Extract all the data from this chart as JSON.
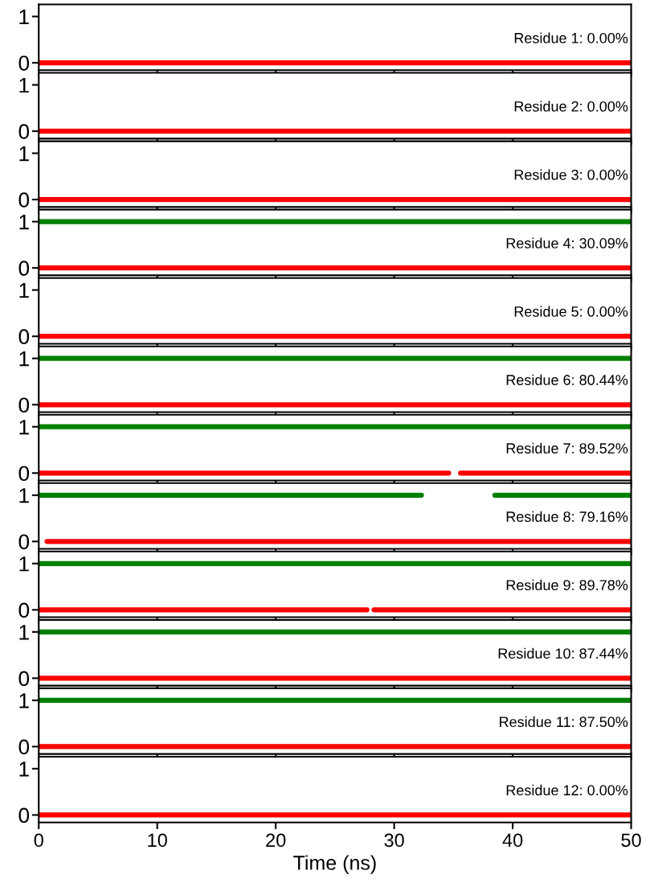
{
  "chart_data": [
    {
      "type": "line",
      "annotations": [
        "Residue 1: 0.00%"
      ],
      "xlim": [
        0,
        50
      ],
      "xticks": [
        0,
        10,
        20,
        30,
        40,
        50
      ],
      "ylim": [
        -0.16,
        1.26
      ],
      "yticks": [
        0,
        1
      ],
      "tick_labels": "y",
      "marker": "none",
      "line_style": "solid",
      "grid": false,
      "legend": false,
      "series": [
        {
          "color": "#ff0000",
          "x": [
            0,
            50
          ],
          "values": [
            0,
            0
          ]
        }
      ]
    },
    {
      "type": "line",
      "annotations": [
        "Residue 2: 0.00%"
      ],
      "xlim": [
        0,
        50
      ],
      "xticks": [
        0,
        10,
        20,
        30,
        40,
        50
      ],
      "ylim": [
        -0.16,
        1.26
      ],
      "yticks": [
        0,
        1
      ],
      "tick_labels": "y",
      "marker": "none",
      "line_style": "solid",
      "grid": false,
      "legend": false,
      "series": [
        {
          "color": "#ff0000",
          "x": [
            0,
            50
          ],
          "values": [
            0,
            0
          ]
        }
      ]
    },
    {
      "type": "line",
      "annotations": [
        "Residue 3: 0.00%"
      ],
      "xlim": [
        0,
        50
      ],
      "xticks": [
        0,
        10,
        20,
        30,
        40,
        50
      ],
      "ylim": [
        -0.16,
        1.26
      ],
      "yticks": [
        0,
        1
      ],
      "tick_labels": "y",
      "marker": "none",
      "line_style": "solid",
      "grid": false,
      "legend": false,
      "series": [
        {
          "color": "#ff0000",
          "x": [
            0,
            50
          ],
          "values": [
            0,
            0
          ]
        }
      ]
    },
    {
      "type": "line",
      "annotations": [
        "Residue 4: 30.09%"
      ],
      "xlim": [
        0,
        50
      ],
      "xticks": [
        0,
        10,
        20,
        30,
        40,
        50
      ],
      "ylim": [
        -0.16,
        1.26
      ],
      "yticks": [
        0,
        1
      ],
      "tick_labels": "y",
      "marker": "none",
      "line_style": "solid",
      "grid": false,
      "legend": false,
      "series": [
        {
          "color": "#008000",
          "x": [
            0,
            50
          ],
          "values": [
            1,
            1
          ]
        },
        {
          "color": "#ff0000",
          "x": [
            0,
            50
          ],
          "values": [
            0,
            0
          ]
        }
      ]
    },
    {
      "type": "line",
      "annotations": [
        "Residue 5: 0.00%"
      ],
      "xlim": [
        0,
        50
      ],
      "xticks": [
        0,
        10,
        20,
        30,
        40,
        50
      ],
      "ylim": [
        -0.16,
        1.26
      ],
      "yticks": [
        0,
        1
      ],
      "tick_labels": "y",
      "marker": "none",
      "line_style": "solid",
      "grid": false,
      "legend": false,
      "series": [
        {
          "color": "#ff0000",
          "x": [
            0,
            50
          ],
          "values": [
            0,
            0
          ]
        }
      ]
    },
    {
      "type": "line",
      "annotations": [
        "Residue 6: 80.44%"
      ],
      "xlim": [
        0,
        50
      ],
      "xticks": [
        0,
        10,
        20,
        30,
        40,
        50
      ],
      "ylim": [
        -0.16,
        1.26
      ],
      "yticks": [
        0,
        1
      ],
      "tick_labels": "y",
      "marker": "none",
      "line_style": "solid",
      "grid": false,
      "legend": false,
      "series": [
        {
          "color": "#008000",
          "x": [
            0,
            50
          ],
          "values": [
            1,
            1
          ]
        },
        {
          "color": "#ff0000",
          "x": [
            0,
            50
          ],
          "values": [
            0,
            0
          ]
        }
      ]
    },
    {
      "type": "line",
      "annotations": [
        "Residue 7: 89.52%"
      ],
      "xlim": [
        0,
        50
      ],
      "xticks": [
        0,
        10,
        20,
        30,
        40,
        50
      ],
      "ylim": [
        -0.16,
        1.26
      ],
      "yticks": [
        0,
        1
      ],
      "tick_labels": "y",
      "marker": "none",
      "line_style": "solid",
      "grid": false,
      "legend": false,
      "series": [
        {
          "color": "#008000",
          "x": [
            0,
            50
          ],
          "values": [
            1,
            1
          ]
        },
        {
          "color": "#ff0000",
          "x": [
            0,
            34.6,
            35.1,
            35.6,
            50
          ],
          "values": [
            0,
            0,
            null,
            0,
            0
          ]
        }
      ]
    },
    {
      "type": "line",
      "annotations": [
        "Residue 8: 79.16%"
      ],
      "xlim": [
        0,
        50
      ],
      "xticks": [
        0,
        10,
        20,
        30,
        40,
        50
      ],
      "ylim": [
        -0.16,
        1.26
      ],
      "yticks": [
        0,
        1
      ],
      "tick_labels": "y",
      "marker": "none",
      "line_style": "solid",
      "grid": false,
      "legend": false,
      "series": [
        {
          "color": "#008000",
          "x": [
            0,
            32.3,
            35.4,
            38.5,
            50
          ],
          "values": [
            1,
            1,
            null,
            1,
            1
          ]
        },
        {
          "color": "#ff0000",
          "x": [
            0.7,
            50
          ],
          "values": [
            0,
            0
          ]
        }
      ]
    },
    {
      "type": "line",
      "annotations": [
        "Residue 9: 89.78%"
      ],
      "xlim": [
        0,
        50
      ],
      "xticks": [
        0,
        10,
        20,
        30,
        40,
        50
      ],
      "ylim": [
        -0.16,
        1.26
      ],
      "yticks": [
        0,
        1
      ],
      "tick_labels": "y",
      "marker": "none",
      "line_style": "solid",
      "grid": false,
      "legend": false,
      "series": [
        {
          "color": "#008000",
          "x": [
            0,
            50
          ],
          "values": [
            1,
            1
          ]
        },
        {
          "color": "#ff0000",
          "x": [
            0,
            27.7,
            28.0,
            28.3,
            50
          ],
          "values": [
            0,
            0,
            null,
            0,
            0
          ]
        }
      ]
    },
    {
      "type": "line",
      "annotations": [
        "Residue 10: 87.44%"
      ],
      "xlim": [
        0,
        50
      ],
      "xticks": [
        0,
        10,
        20,
        30,
        40,
        50
      ],
      "ylim": [
        -0.16,
        1.26
      ],
      "yticks": [
        0,
        1
      ],
      "tick_labels": "y",
      "marker": "none",
      "line_style": "solid",
      "grid": false,
      "legend": false,
      "series": [
        {
          "color": "#008000",
          "x": [
            0,
            50
          ],
          "values": [
            1,
            1
          ]
        },
        {
          "color": "#ff0000",
          "x": [
            0,
            50
          ],
          "values": [
            0,
            0
          ]
        }
      ]
    },
    {
      "type": "line",
      "annotations": [
        "Residue 11: 87.50%"
      ],
      "xlim": [
        0,
        50
      ],
      "xticks": [
        0,
        10,
        20,
        30,
        40,
        50
      ],
      "ylim": [
        -0.16,
        1.26
      ],
      "yticks": [
        0,
        1
      ],
      "tick_labels": "y",
      "marker": "none",
      "line_style": "solid",
      "grid": false,
      "legend": false,
      "series": [
        {
          "color": "#008000",
          "x": [
            0,
            50
          ],
          "values": [
            1,
            1
          ]
        },
        {
          "color": "#ff0000",
          "x": [
            0,
            50
          ],
          "values": [
            0,
            0
          ]
        }
      ]
    },
    {
      "type": "line",
      "annotations": [
        "Residue 12: 0.00%"
      ],
      "xlabel": "Time (ns)",
      "xlim": [
        0,
        50
      ],
      "xticks": [
        0,
        10,
        20,
        30,
        40,
        50
      ],
      "ylim": [
        -0.16,
        1.26
      ],
      "yticks": [
        0,
        1
      ],
      "marker": "none",
      "line_style": "solid",
      "grid": false,
      "legend": false,
      "series": [
        {
          "color": "#ff0000",
          "x": [
            0,
            50
          ],
          "values": [
            0,
            0
          ]
        }
      ]
    }
  ]
}
